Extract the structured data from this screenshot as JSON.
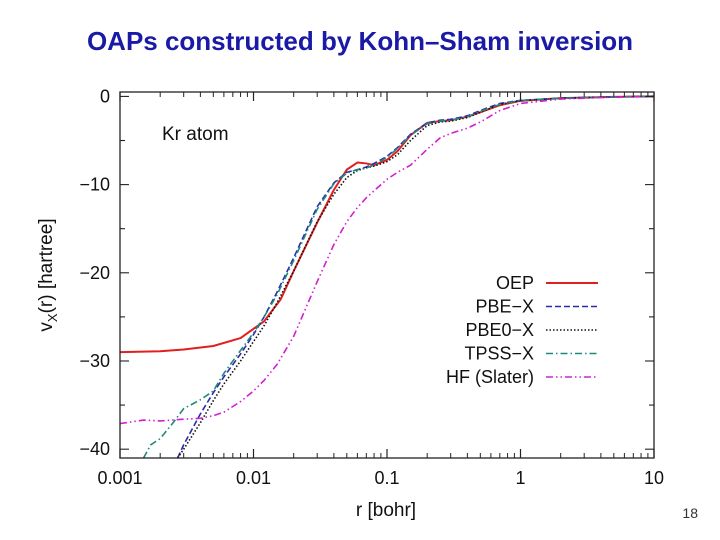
{
  "slide": {
    "title": "OAPs constructed by Kohn–Sham inversion",
    "page_number": "18"
  },
  "chart_data": {
    "type": "line",
    "title": "",
    "annotation": "Kr atom",
    "xlabel": "r  [bohr]",
    "ylabel": "v",
    "ylabel_sub": "X",
    "ylabel_rest": "(r)  [hartree]",
    "xscale": "log",
    "xlim": [
      0.001,
      10
    ],
    "ylim": [
      -41,
      0.5
    ],
    "x_ticks": [
      {
        "value": 0.001,
        "label": "0.001"
      },
      {
        "value": 0.01,
        "label": "0.01"
      },
      {
        "value": 0.1,
        "label": "0.1"
      },
      {
        "value": 1,
        "label": "1"
      },
      {
        "value": 10,
        "label": "10"
      }
    ],
    "y_ticks": [
      {
        "value": 0,
        "label": "0"
      },
      {
        "value": -10,
        "label": "−10"
      },
      {
        "value": -20,
        "label": "−20"
      },
      {
        "value": -30,
        "label": "−30"
      },
      {
        "value": -40,
        "label": "−40"
      }
    ],
    "legend_position": "bottom-right",
    "series": [
      {
        "name": "OEP",
        "color": "#e02020",
        "dash": "",
        "x": [
          0.001,
          0.002,
          0.003,
          0.005,
          0.008,
          0.012,
          0.016,
          0.02,
          0.03,
          0.04,
          0.05,
          0.06,
          0.07,
          0.08,
          0.1,
          0.12,
          0.15,
          0.2,
          0.25,
          0.3,
          0.4,
          0.5,
          0.7,
          1,
          2,
          5,
          10
        ],
        "y": [
          -29.0,
          -28.9,
          -28.7,
          -28.3,
          -27.4,
          -25.5,
          -23.0,
          -19.8,
          -14.3,
          -10.6,
          -8.3,
          -7.5,
          -7.6,
          -7.8,
          -7.2,
          -6.2,
          -4.4,
          -3.0,
          -2.8,
          -2.7,
          -2.3,
          -1.8,
          -1.0,
          -0.5,
          -0.2,
          -0.05,
          0.0
        ]
      },
      {
        "name": "PBE−X",
        "color": "#2a2ab0",
        "dash": "6,3",
        "x": [
          0.0027,
          0.003,
          0.004,
          0.005,
          0.006,
          0.008,
          0.01,
          0.012,
          0.015,
          0.02,
          0.03,
          0.04,
          0.05,
          0.06,
          0.07,
          0.08,
          0.1,
          0.12,
          0.15,
          0.2,
          0.25,
          0.3,
          0.4,
          0.5,
          0.7,
          1,
          2,
          5,
          10
        ],
        "y": [
          -41.0,
          -39.5,
          -36.0,
          -33.6,
          -31.8,
          -29.2,
          -27.0,
          -25.0,
          -22.2,
          -18.3,
          -12.5,
          -9.8,
          -8.6,
          -8.3,
          -8.0,
          -7.6,
          -6.8,
          -5.8,
          -4.3,
          -3.0,
          -2.7,
          -2.6,
          -2.2,
          -1.6,
          -0.8,
          -0.45,
          -0.2,
          -0.05,
          0.0
        ]
      },
      {
        "name": "PBE0−X",
        "color": "#111111",
        "dash": "1.5,2",
        "x": [
          0.0027,
          0.003,
          0.004,
          0.005,
          0.006,
          0.008,
          0.01,
          0.012,
          0.015,
          0.02,
          0.03,
          0.04,
          0.05,
          0.06,
          0.07,
          0.08,
          0.1,
          0.12,
          0.15,
          0.2,
          0.25,
          0.3,
          0.4,
          0.5,
          0.7,
          1,
          2,
          5,
          10
        ],
        "y": [
          -41.0,
          -40.0,
          -37.0,
          -34.5,
          -32.6,
          -30.0,
          -27.8,
          -26.0,
          -23.4,
          -19.8,
          -14.2,
          -11.1,
          -9.2,
          -8.4,
          -8.1,
          -7.9,
          -7.4,
          -6.6,
          -5.0,
          -3.3,
          -2.9,
          -2.8,
          -2.4,
          -1.8,
          -0.9,
          -0.5,
          -0.2,
          -0.05,
          0.0
        ]
      },
      {
        "name": "TPSS−X",
        "color": "#1f8a7a",
        "dash": "7,3,1.5,3",
        "x": [
          0.0015,
          0.0017,
          0.002,
          0.0025,
          0.003,
          0.004,
          0.005,
          0.006,
          0.008,
          0.01,
          0.012,
          0.015,
          0.02,
          0.03,
          0.04,
          0.05,
          0.06,
          0.07,
          0.08,
          0.1,
          0.12,
          0.15,
          0.2,
          0.25,
          0.3,
          0.4,
          0.5,
          0.7,
          1,
          2,
          5,
          10
        ],
        "y": [
          -41.0,
          -39.5,
          -38.8,
          -37.0,
          -35.4,
          -34.4,
          -33.4,
          -31.4,
          -28.8,
          -26.8,
          -25.0,
          -22.5,
          -18.6,
          -12.8,
          -9.9,
          -8.7,
          -8.3,
          -8.1,
          -7.8,
          -6.9,
          -5.9,
          -4.4,
          -3.1,
          -2.8,
          -2.7,
          -2.3,
          -1.7,
          -0.9,
          -0.45,
          -0.2,
          -0.05,
          0.0
        ]
      },
      {
        "name": "HF (Slater)",
        "color": "#d020d0",
        "dash": "7,3,1.5,3,1.5,3",
        "x": [
          0.001,
          0.0015,
          0.002,
          0.003,
          0.004,
          0.005,
          0.006,
          0.008,
          0.01,
          0.012,
          0.015,
          0.02,
          0.03,
          0.04,
          0.05,
          0.06,
          0.07,
          0.08,
          0.1,
          0.12,
          0.15,
          0.2,
          0.25,
          0.3,
          0.4,
          0.5,
          0.7,
          1,
          2,
          5,
          10
        ],
        "y": [
          -37.1,
          -36.7,
          -36.8,
          -36.6,
          -36.5,
          -36.2,
          -35.8,
          -34.6,
          -33.4,
          -32.2,
          -30.4,
          -27.2,
          -21.0,
          -16.8,
          -14.2,
          -12.6,
          -11.5,
          -10.7,
          -9.4,
          -8.6,
          -7.8,
          -6.0,
          -4.7,
          -4.2,
          -3.6,
          -2.9,
          -1.6,
          -0.8,
          -0.3,
          -0.08,
          0.0
        ]
      }
    ]
  }
}
